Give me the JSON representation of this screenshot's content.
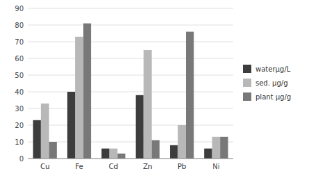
{
  "chart_data": {
    "type": "bar",
    "categories": [
      "Cu",
      "Fe",
      "Cd",
      "Zn",
      "Pb",
      "Ni"
    ],
    "series": [
      {
        "name": "waterμg/L",
        "color": "#3d3d3d",
        "values": [
          23,
          40,
          6,
          38,
          8,
          6
        ]
      },
      {
        "name": "sed. μg/g",
        "color": "#b8b8b8",
        "values": [
          33,
          73,
          6,
          65,
          20,
          13
        ]
      },
      {
        "name": "plant μg/g",
        "color": "#787878",
        "values": [
          10,
          81,
          3,
          11,
          76,
          13
        ]
      }
    ],
    "ylim": [
      0,
      90
    ],
    "yticks": [
      0,
      10,
      20,
      30,
      40,
      50,
      60,
      70,
      80,
      90
    ],
    "grid": true,
    "legend": "right"
  }
}
